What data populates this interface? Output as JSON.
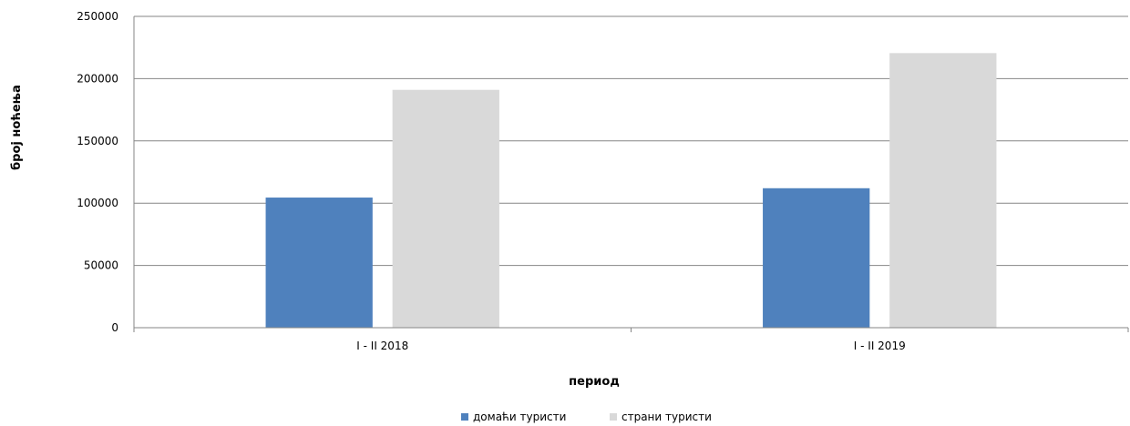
{
  "chart_data": {
    "type": "bar",
    "title": "",
    "xlabel": "период",
    "ylabel": "број ноћења",
    "categories": [
      "I - II 2018",
      "I - II 2019"
    ],
    "series": [
      {
        "name": "домаћи туристи",
        "values": [
          104500,
          112000
        ],
        "color": "#4f81bd"
      },
      {
        "name": "страни туристи",
        "values": [
          191000,
          220500
        ],
        "color": "#d9d9d9"
      }
    ],
    "ylim": [
      0,
      250000
    ],
    "yticks": [
      0,
      50000,
      100000,
      150000,
      200000,
      250000
    ],
    "grid": true,
    "legend_position": "bottom"
  }
}
